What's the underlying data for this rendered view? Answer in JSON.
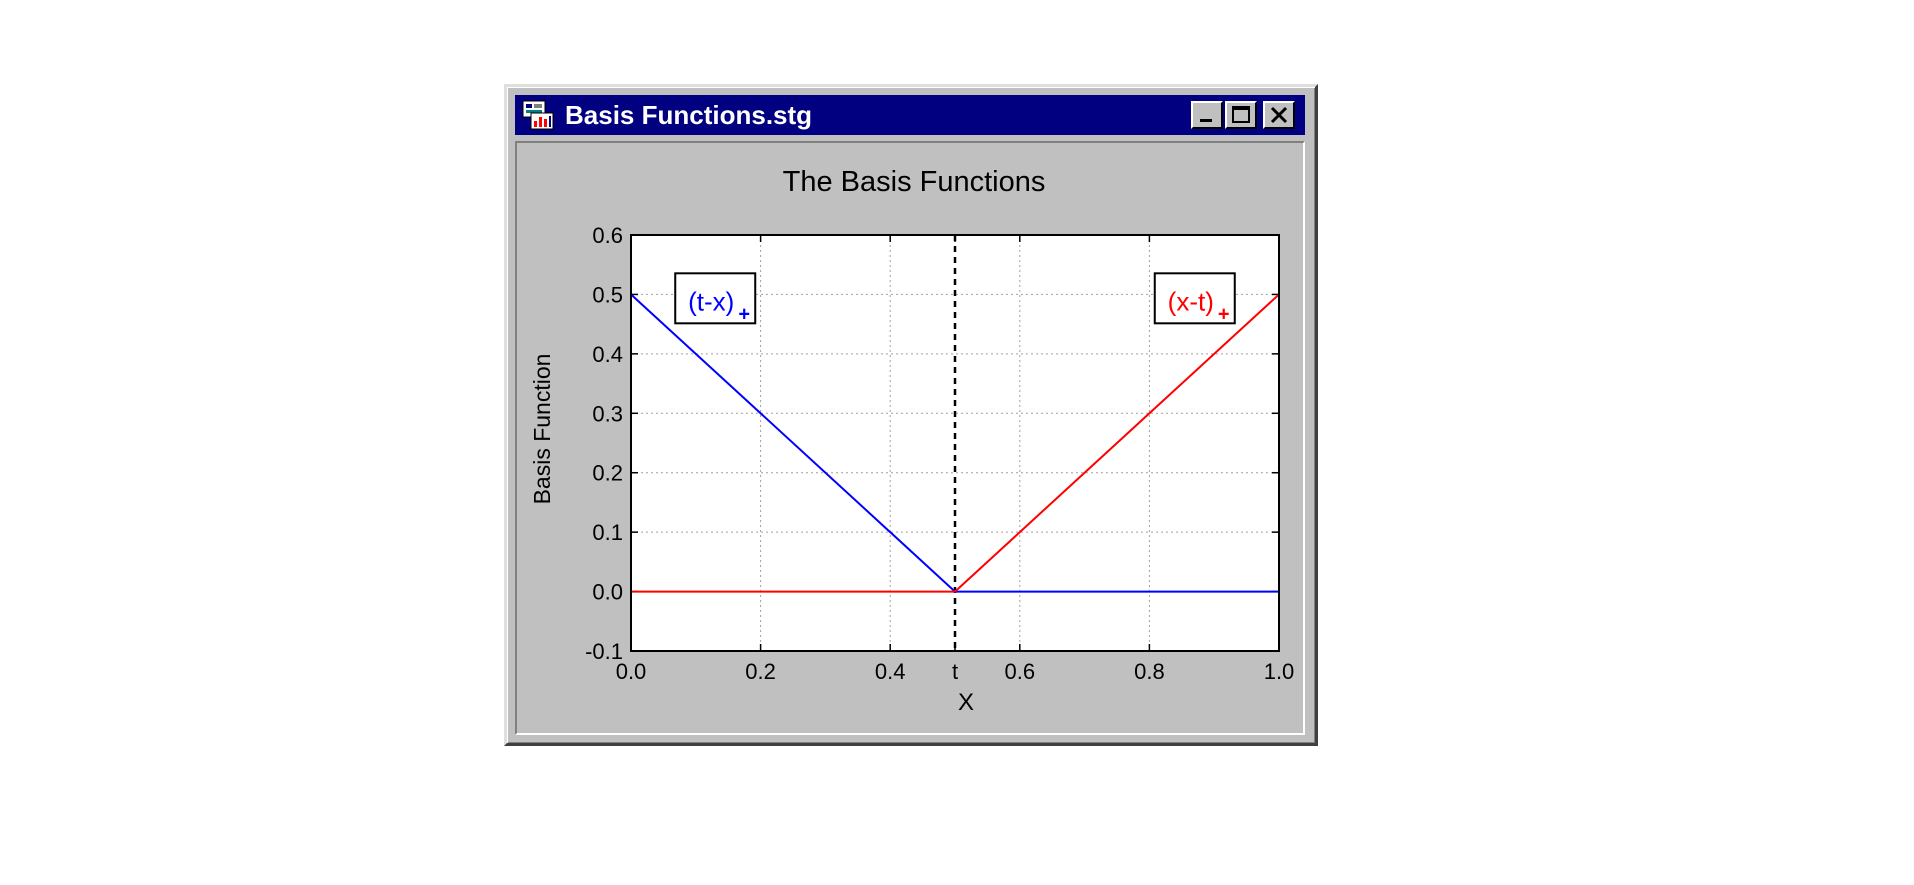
{
  "window": {
    "title": "Basis Functions.stg",
    "icon": "graph-document-icon",
    "controls": {
      "minimize": "minimize-icon",
      "maximize": "maximize-icon",
      "close": "close-icon"
    }
  },
  "colors": {
    "titlebar": "#000080",
    "window_face": "#c0c0c0",
    "series_left": "#0000ff",
    "series_right": "#ff0000"
  },
  "chart_data": {
    "type": "line",
    "title": "The Basis Functions",
    "xlabel": "X",
    "ylabel": "Basis Function",
    "xlim": [
      0.0,
      1.0
    ],
    "ylim": [
      -0.1,
      0.6
    ],
    "x_ticks": [
      {
        "value": 0.0,
        "label": "0.0"
      },
      {
        "value": 0.2,
        "label": "0.2"
      },
      {
        "value": 0.4,
        "label": "0.4"
      },
      {
        "value": 0.5,
        "label": "t"
      },
      {
        "value": 0.6,
        "label": "0.6"
      },
      {
        "value": 0.8,
        "label": "0.8"
      },
      {
        "value": 1.0,
        "label": "1.0"
      }
    ],
    "y_ticks": [
      {
        "value": 0.6,
        "label": "0.6"
      },
      {
        "value": 0.5,
        "label": "0.5"
      },
      {
        "value": 0.4,
        "label": "0.4"
      },
      {
        "value": 0.3,
        "label": "0.3"
      },
      {
        "value": 0.2,
        "label": "0.2"
      },
      {
        "value": 0.1,
        "label": "0.1"
      },
      {
        "value": 0.0,
        "label": "0.0"
      },
      {
        "value": -0.1,
        "label": "-0.1"
      }
    ],
    "grid": true,
    "knot_line": {
      "x": 0.5,
      "style": "dashed"
    },
    "series": [
      {
        "name": "(t-x)+",
        "label_main": "(t-x)",
        "label_sub": "+",
        "color": "#0000ff",
        "x": [
          0.0,
          0.5,
          1.0
        ],
        "y": [
          0.5,
          0.0,
          0.0
        ]
      },
      {
        "name": "(x-t)+",
        "label_main": "(x-t)",
        "label_sub": "+",
        "color": "#ff0000",
        "x": [
          0.0,
          0.5,
          1.0
        ],
        "y": [
          0.0,
          0.0,
          0.5
        ]
      }
    ],
    "annotations": [
      {
        "series": 0,
        "x": 0.13,
        "y": 0.48
      },
      {
        "series": 1,
        "x": 0.87,
        "y": 0.48
      }
    ]
  }
}
